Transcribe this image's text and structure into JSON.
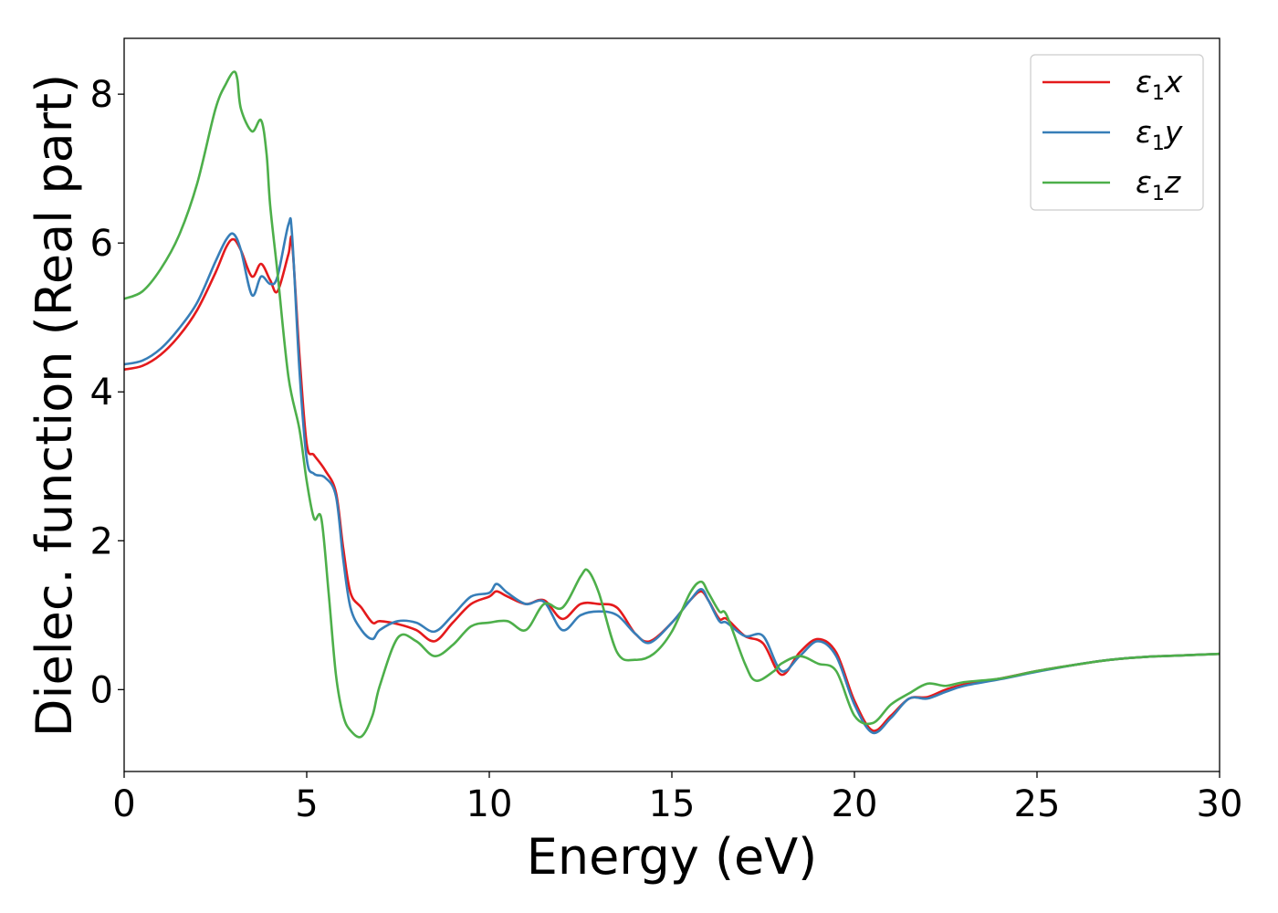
{
  "chart_data": {
    "type": "line",
    "title": "",
    "xlabel": "Energy (eV)",
    "ylabel": "Dielec. function (Real part)",
    "xlim": [
      0,
      30
    ],
    "ylim": [
      -1.1,
      8.75
    ],
    "xticks": [
      0,
      5,
      10,
      15,
      20,
      25,
      30
    ],
    "yticks": [
      0,
      2,
      4,
      6,
      8
    ],
    "xtick_labels": [
      "0",
      "5",
      "10",
      "15",
      "20",
      "25",
      "30"
    ],
    "ytick_labels": [
      "0",
      "2",
      "4",
      "6",
      "8"
    ],
    "grid": false,
    "legend_position": "top-right",
    "series": [
      {
        "name": "ε1x",
        "name_base": "ε",
        "name_sub": "1",
        "name_var": "x",
        "color": "#e41a1c",
        "x": [
          0,
          0.5,
          1.0,
          1.5,
          2.0,
          2.5,
          2.8,
          3.0,
          3.2,
          3.5,
          3.75,
          4.0,
          4.2,
          4.5,
          4.6,
          4.8,
          5.0,
          5.2,
          5.5,
          5.8,
          6.0,
          6.2,
          6.5,
          6.8,
          7.0,
          7.5,
          8.0,
          8.5,
          9.0,
          9.5,
          10.0,
          10.2,
          10.5,
          11.0,
          11.5,
          12.0,
          12.5,
          13.0,
          13.5,
          14.0,
          14.4,
          15.0,
          15.5,
          15.8,
          16.0,
          16.3,
          16.5,
          17.0,
          17.5,
          18.0,
          18.5,
          19.0,
          19.5,
          20.0,
          20.5,
          21.0,
          21.5,
          22.0,
          22.5,
          23.0,
          24.0,
          25.0,
          26.0,
          27.0,
          28.0,
          29.0,
          30.0
        ],
        "y": [
          4.3,
          4.35,
          4.5,
          4.75,
          5.1,
          5.6,
          5.95,
          6.05,
          5.9,
          5.55,
          5.72,
          5.5,
          5.35,
          5.85,
          6.0,
          4.5,
          3.3,
          3.15,
          2.95,
          2.65,
          1.9,
          1.3,
          1.1,
          0.9,
          0.92,
          0.88,
          0.8,
          0.65,
          0.9,
          1.15,
          1.25,
          1.32,
          1.25,
          1.15,
          1.2,
          0.95,
          1.15,
          1.15,
          1.1,
          0.75,
          0.65,
          0.9,
          1.2,
          1.32,
          1.2,
          0.95,
          0.95,
          0.72,
          0.62,
          0.2,
          0.5,
          0.68,
          0.5,
          -0.15,
          -0.55,
          -0.35,
          -0.12,
          -0.1,
          0.0,
          0.07,
          0.15,
          0.25,
          0.33,
          0.4,
          0.44,
          0.46,
          0.48
        ]
      },
      {
        "name": "ε1y",
        "name_base": "ε",
        "name_sub": "1",
        "name_var": "y",
        "color": "#377eb8",
        "x": [
          0,
          0.5,
          1.0,
          1.5,
          2.0,
          2.5,
          2.8,
          3.0,
          3.2,
          3.5,
          3.75,
          4.0,
          4.2,
          4.5,
          4.6,
          4.8,
          5.0,
          5.2,
          5.5,
          5.8,
          6.0,
          6.2,
          6.5,
          6.8,
          7.0,
          7.5,
          8.0,
          8.5,
          9.0,
          9.5,
          10.0,
          10.2,
          10.5,
          11.0,
          11.5,
          12.0,
          12.5,
          13.0,
          13.5,
          14.0,
          14.4,
          15.0,
          15.5,
          15.8,
          16.0,
          16.3,
          16.5,
          17.0,
          17.5,
          18.0,
          18.5,
          19.0,
          19.5,
          20.0,
          20.5,
          21.0,
          21.5,
          22.0,
          22.5,
          23.0,
          24.0,
          25.0,
          26.0,
          27.0,
          28.0,
          29.0,
          30.0
        ],
        "y": [
          4.37,
          4.42,
          4.58,
          4.85,
          5.2,
          5.75,
          6.05,
          6.12,
          5.9,
          5.3,
          5.55,
          5.45,
          5.55,
          6.25,
          6.1,
          4.3,
          3.1,
          2.9,
          2.85,
          2.6,
          1.75,
          1.1,
          0.8,
          0.68,
          0.8,
          0.92,
          0.9,
          0.78,
          1.0,
          1.25,
          1.3,
          1.42,
          1.3,
          1.15,
          1.18,
          0.8,
          1.0,
          1.05,
          1.0,
          0.75,
          0.63,
          0.9,
          1.2,
          1.35,
          1.2,
          0.92,
          0.9,
          0.72,
          0.72,
          0.25,
          0.45,
          0.65,
          0.45,
          -0.2,
          -0.58,
          -0.38,
          -0.12,
          -0.12,
          -0.03,
          0.05,
          0.14,
          0.24,
          0.33,
          0.4,
          0.44,
          0.46,
          0.48
        ]
      },
      {
        "name": "ε1z",
        "name_base": "ε",
        "name_sub": "1",
        "name_var": "z",
        "color": "#4daf4a",
        "x": [
          0,
          0.5,
          1.0,
          1.5,
          2.0,
          2.5,
          2.8,
          3.0,
          3.1,
          3.2,
          3.5,
          3.75,
          3.9,
          4.0,
          4.2,
          4.5,
          4.8,
          5.0,
          5.2,
          5.4,
          5.6,
          5.8,
          6.0,
          6.2,
          6.5,
          6.8,
          7.0,
          7.5,
          8.0,
          8.5,
          9.0,
          9.5,
          10.0,
          10.5,
          11.0,
          11.5,
          12.0,
          12.5,
          12.7,
          13.0,
          13.5,
          14.0,
          14.5,
          15.0,
          15.5,
          15.8,
          16.0,
          16.3,
          16.5,
          17.0,
          17.3,
          17.8,
          18.0,
          18.5,
          19.0,
          19.5,
          20.0,
          20.5,
          21.0,
          21.5,
          22.0,
          22.5,
          23.0,
          24.0,
          25.0,
          26.0,
          27.0,
          28.0,
          29.0,
          30.0
        ],
        "y": [
          5.25,
          5.35,
          5.65,
          6.1,
          6.8,
          7.8,
          8.15,
          8.3,
          8.2,
          7.8,
          7.5,
          7.65,
          7.2,
          6.5,
          5.6,
          4.2,
          3.5,
          2.8,
          2.3,
          2.3,
          1.3,
          0.2,
          -0.35,
          -0.55,
          -0.63,
          -0.35,
          0.05,
          0.7,
          0.65,
          0.45,
          0.6,
          0.85,
          0.9,
          0.92,
          0.8,
          1.15,
          1.1,
          1.52,
          1.6,
          1.3,
          0.5,
          0.4,
          0.48,
          0.78,
          1.3,
          1.45,
          1.3,
          1.05,
          1.0,
          0.35,
          0.12,
          0.25,
          0.35,
          0.45,
          0.35,
          0.25,
          -0.35,
          -0.45,
          -0.2,
          -0.05,
          0.08,
          0.05,
          0.1,
          0.15,
          0.25,
          0.33,
          0.4,
          0.44,
          0.46,
          0.48
        ]
      }
    ]
  }
}
